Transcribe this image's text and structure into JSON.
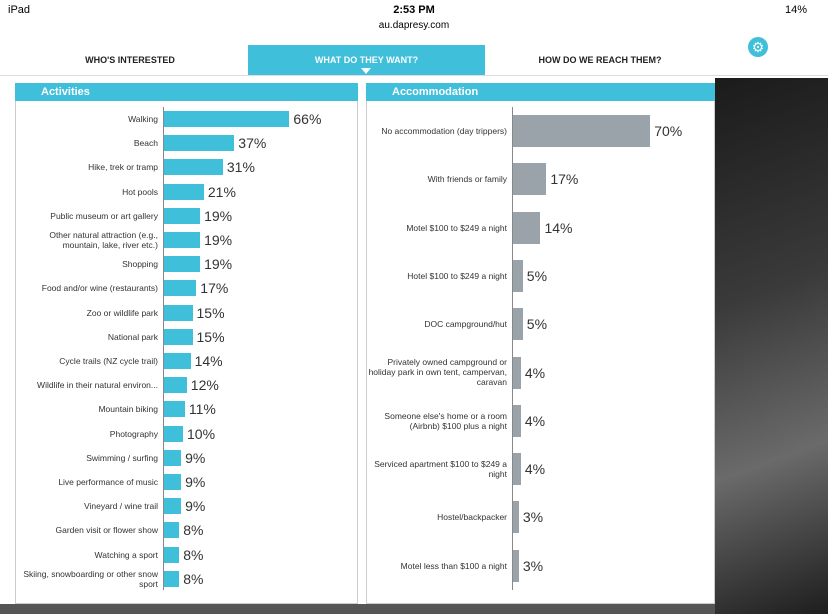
{
  "status_bar": {
    "device": "iPad",
    "time": "2:53 PM",
    "url": "au.dapresy.com",
    "battery": "14%"
  },
  "tabs": [
    "WHO'S INTERESTED",
    "WHAT DO THEY WANT?",
    "HOW DO WE REACH THEM?"
  ],
  "chart_data": [
    {
      "type": "bar",
      "orientation": "horizontal",
      "title": "Activities",
      "color": "#3fbfda",
      "categories": [
        "Walking",
        "Beach",
        "Hike, trek or tramp",
        "Hot pools",
        "Public museum or art gallery",
        "Other natural attraction (e.g., mountain, lake, river etc.)",
        "Shopping",
        "Food and/or wine (restaurants)",
        "Zoo or wildlife park",
        "National park",
        "Cycle trails (NZ cycle trail)",
        "Wildlife in their natural environ...",
        "Mountain biking",
        "Photography",
        "Swimming / surfing",
        "Live performance of music",
        "Vineyard / wine trail",
        "Garden visit or flower show",
        "Watching a sport",
        "Skiing, snowboarding or other snow sport"
      ],
      "values": [
        66,
        37,
        31,
        21,
        19,
        19,
        19,
        17,
        15,
        15,
        14,
        12,
        11,
        10,
        9,
        9,
        9,
        8,
        8,
        8
      ],
      "value_labels": [
        "66%",
        "37%",
        "31%",
        "21%",
        "19%",
        "19%",
        "19%",
        "17%",
        "15%",
        "15%",
        "14%",
        "12%",
        "11%",
        "10%",
        "9%",
        "9%",
        "9%",
        "8%",
        "8%",
        "8%"
      ]
    },
    {
      "type": "bar",
      "orientation": "horizontal",
      "title": "Accommodation",
      "color": "#9aa3a9",
      "categories": [
        "No accommodation (day trippers)",
        "With friends or family",
        "Motel $100 to $249 a night",
        "Hotel $100 to $249 a night",
        "DOC campground/hut",
        "Privately owned campground or holiday park in own tent, campervan, caravan",
        "Someone else's home or a room (Airbnb) $100 plus a night",
        "Serviced apartment $100 to $249 a night",
        "Hostel/backpacker",
        "Motel less than $100 a night"
      ],
      "values": [
        70,
        17,
        14,
        5,
        5,
        4,
        4,
        4,
        3,
        3
      ],
      "value_labels": [
        "70%",
        "17%",
        "14%",
        "5%",
        "5%",
        "4%",
        "4%",
        "4%",
        "3%",
        "3%"
      ]
    }
  ]
}
